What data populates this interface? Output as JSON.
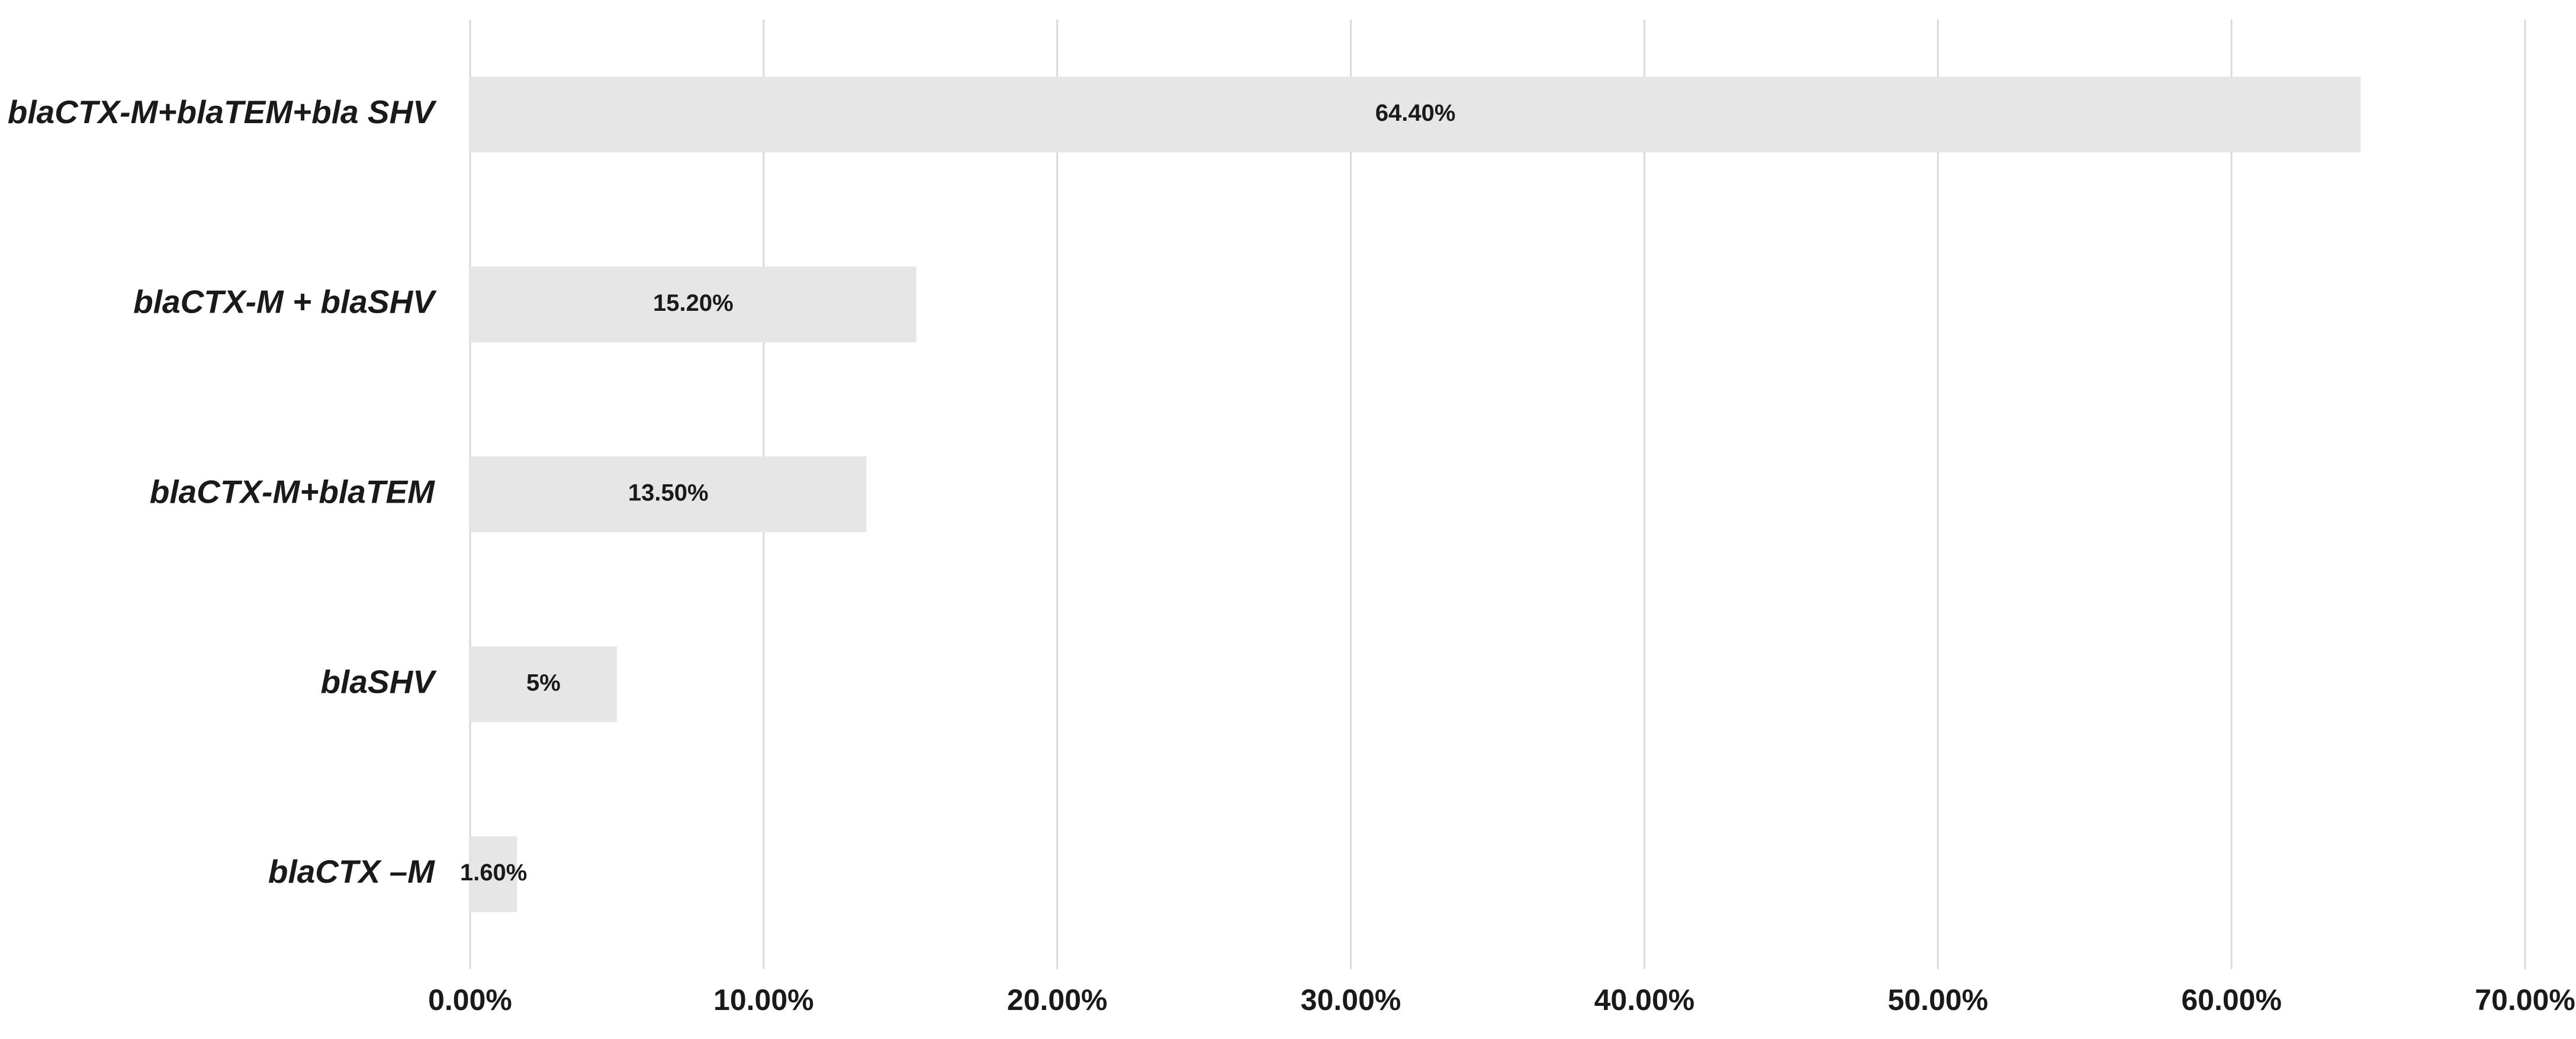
{
  "chart_data": {
    "type": "bar",
    "orientation": "horizontal",
    "categories": [
      "blaCTX-M+blaTEM+bla SHV",
      "blaCTX-M + blaSHV",
      "blaCTX-M+blaTEM",
      "blaSHV",
      "blaCTX –M"
    ],
    "values": [
      64.4,
      15.2,
      13.5,
      5,
      1.6
    ],
    "value_labels": [
      "64.40%",
      "15.20%",
      "13.50%",
      "5%",
      "1.60%"
    ],
    "color": "#e6e6e6",
    "xlim": [
      0,
      70
    ],
    "xticks": [
      {
        "value": 0,
        "label": "0.00%"
      },
      {
        "value": 10,
        "label": "10.00%"
      },
      {
        "value": 20,
        "label": "20.00%"
      },
      {
        "value": 30,
        "label": "30.00%"
      },
      {
        "value": 40,
        "label": "40.00%"
      },
      {
        "value": 50,
        "label": "50.00%"
      },
      {
        "value": 60,
        "label": "60.00%"
      },
      {
        "value": 70,
        "label": "70.00%"
      }
    ],
    "grid": true
  }
}
